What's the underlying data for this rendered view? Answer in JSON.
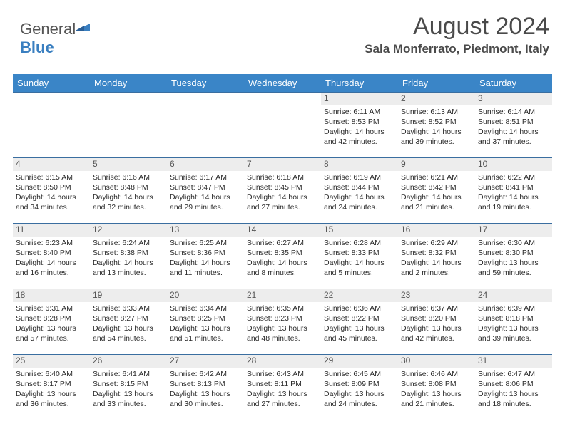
{
  "logo": {
    "part1": "General",
    "part2": "Blue"
  },
  "title": "August 2024",
  "location": "Sala Monferrato, Piedmont, Italy",
  "colors": {
    "headerBg": "#3a85c7",
    "headerText": "#ffffff",
    "dayRowBg": "#ededed",
    "rowBorder": "#3a6ea0",
    "bodyText": "#2a2a2a",
    "logoBlue": "#3a7fc0",
    "titleText": "#4a4a4a"
  },
  "dayNames": [
    "Sunday",
    "Monday",
    "Tuesday",
    "Wednesday",
    "Thursday",
    "Friday",
    "Saturday"
  ],
  "weeks": [
    [
      null,
      null,
      null,
      null,
      {
        "n": "1",
        "sr": "6:11 AM",
        "ss": "8:53 PM",
        "dl": "14 hours and 42 minutes."
      },
      {
        "n": "2",
        "sr": "6:13 AM",
        "ss": "8:52 PM",
        "dl": "14 hours and 39 minutes."
      },
      {
        "n": "3",
        "sr": "6:14 AM",
        "ss": "8:51 PM",
        "dl": "14 hours and 37 minutes."
      }
    ],
    [
      {
        "n": "4",
        "sr": "6:15 AM",
        "ss": "8:50 PM",
        "dl": "14 hours and 34 minutes."
      },
      {
        "n": "5",
        "sr": "6:16 AM",
        "ss": "8:48 PM",
        "dl": "14 hours and 32 minutes."
      },
      {
        "n": "6",
        "sr": "6:17 AM",
        "ss": "8:47 PM",
        "dl": "14 hours and 29 minutes."
      },
      {
        "n": "7",
        "sr": "6:18 AM",
        "ss": "8:45 PM",
        "dl": "14 hours and 27 minutes."
      },
      {
        "n": "8",
        "sr": "6:19 AM",
        "ss": "8:44 PM",
        "dl": "14 hours and 24 minutes."
      },
      {
        "n": "9",
        "sr": "6:21 AM",
        "ss": "8:42 PM",
        "dl": "14 hours and 21 minutes."
      },
      {
        "n": "10",
        "sr": "6:22 AM",
        "ss": "8:41 PM",
        "dl": "14 hours and 19 minutes."
      }
    ],
    [
      {
        "n": "11",
        "sr": "6:23 AM",
        "ss": "8:40 PM",
        "dl": "14 hours and 16 minutes."
      },
      {
        "n": "12",
        "sr": "6:24 AM",
        "ss": "8:38 PM",
        "dl": "14 hours and 13 minutes."
      },
      {
        "n": "13",
        "sr": "6:25 AM",
        "ss": "8:36 PM",
        "dl": "14 hours and 11 minutes."
      },
      {
        "n": "14",
        "sr": "6:27 AM",
        "ss": "8:35 PM",
        "dl": "14 hours and 8 minutes."
      },
      {
        "n": "15",
        "sr": "6:28 AM",
        "ss": "8:33 PM",
        "dl": "14 hours and 5 minutes."
      },
      {
        "n": "16",
        "sr": "6:29 AM",
        "ss": "8:32 PM",
        "dl": "14 hours and 2 minutes."
      },
      {
        "n": "17",
        "sr": "6:30 AM",
        "ss": "8:30 PM",
        "dl": "13 hours and 59 minutes."
      }
    ],
    [
      {
        "n": "18",
        "sr": "6:31 AM",
        "ss": "8:28 PM",
        "dl": "13 hours and 57 minutes."
      },
      {
        "n": "19",
        "sr": "6:33 AM",
        "ss": "8:27 PM",
        "dl": "13 hours and 54 minutes."
      },
      {
        "n": "20",
        "sr": "6:34 AM",
        "ss": "8:25 PM",
        "dl": "13 hours and 51 minutes."
      },
      {
        "n": "21",
        "sr": "6:35 AM",
        "ss": "8:23 PM",
        "dl": "13 hours and 48 minutes."
      },
      {
        "n": "22",
        "sr": "6:36 AM",
        "ss": "8:22 PM",
        "dl": "13 hours and 45 minutes."
      },
      {
        "n": "23",
        "sr": "6:37 AM",
        "ss": "8:20 PM",
        "dl": "13 hours and 42 minutes."
      },
      {
        "n": "24",
        "sr": "6:39 AM",
        "ss": "8:18 PM",
        "dl": "13 hours and 39 minutes."
      }
    ],
    [
      {
        "n": "25",
        "sr": "6:40 AM",
        "ss": "8:17 PM",
        "dl": "13 hours and 36 minutes."
      },
      {
        "n": "26",
        "sr": "6:41 AM",
        "ss": "8:15 PM",
        "dl": "13 hours and 33 minutes."
      },
      {
        "n": "27",
        "sr": "6:42 AM",
        "ss": "8:13 PM",
        "dl": "13 hours and 30 minutes."
      },
      {
        "n": "28",
        "sr": "6:43 AM",
        "ss": "8:11 PM",
        "dl": "13 hours and 27 minutes."
      },
      {
        "n": "29",
        "sr": "6:45 AM",
        "ss": "8:09 PM",
        "dl": "13 hours and 24 minutes."
      },
      {
        "n": "30",
        "sr": "6:46 AM",
        "ss": "8:08 PM",
        "dl": "13 hours and 21 minutes."
      },
      {
        "n": "31",
        "sr": "6:47 AM",
        "ss": "8:06 PM",
        "dl": "13 hours and 18 minutes."
      }
    ]
  ],
  "labels": {
    "sunrise": "Sunrise: ",
    "sunset": "Sunset: ",
    "daylight": "Daylight: "
  }
}
